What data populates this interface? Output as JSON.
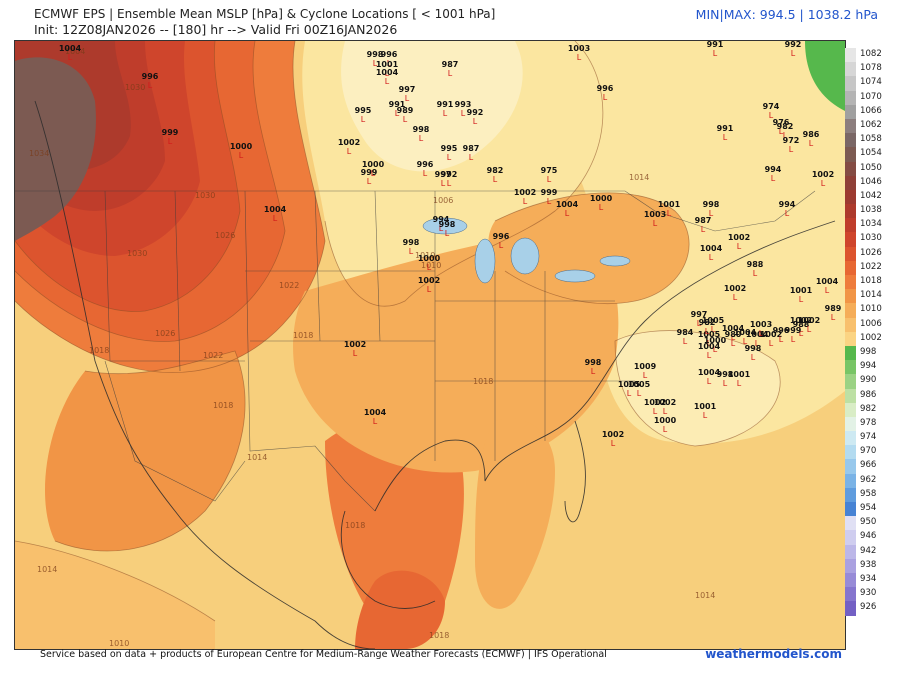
{
  "header": {
    "title": "ECMWF EPS | Ensemble Mean MSLP [hPa] & Cyclone Locations [ < 1001 hPa]",
    "init_line": "Init: 12Z08JAN2026 -- [180] hr --> Valid Fri 00Z16JAN2026",
    "minmax": "MIN|MAX: 994.5 | 1038.2 hPa"
  },
  "footer": {
    "attribution": "Service based on data + products of European Centre for Medium-Range Weather Forecasts (ECMWF) | IFS Operational",
    "brand": "weathermodels.com"
  },
  "colorbar": [
    {
      "label": "1082",
      "color": "#e6e6e6"
    },
    {
      "label": "1078",
      "color": "#d6d6d6"
    },
    {
      "label": "1074",
      "color": "#c6c6c6"
    },
    {
      "label": "1070",
      "color": "#b4b4b4"
    },
    {
      "label": "1066",
      "color": "#a0a0a0"
    },
    {
      "label": "1062",
      "color": "#8c7e7e"
    },
    {
      "label": "1058",
      "color": "#7a6766"
    },
    {
      "label": "1054",
      "color": "#7c5a52"
    },
    {
      "label": "1050",
      "color": "#844c44"
    },
    {
      "label": "1046",
      "color": "#8e4038"
    },
    {
      "label": "1042",
      "color": "#9c3a30"
    },
    {
      "label": "1038",
      "color": "#ad3a2c"
    },
    {
      "label": "1034",
      "color": "#bf3d2b"
    },
    {
      "label": "1030",
      "color": "#cf452c"
    },
    {
      "label": "1026",
      "color": "#dc542e"
    },
    {
      "label": "1022",
      "color": "#e76733"
    },
    {
      "label": "1018",
      "color": "#ee7c3c"
    },
    {
      "label": "1014",
      "color": "#f19546"
    },
    {
      "label": "1010",
      "color": "#f5ad59"
    },
    {
      "label": "1006",
      "color": "#f8c06d"
    },
    {
      "label": "1002",
      "color": "#fbd483"
    },
    {
      "label": "998",
      "color": "#56b84c"
    },
    {
      "label": "994",
      "color": "#78c566"
    },
    {
      "label": "990",
      "color": "#9bd284"
    },
    {
      "label": "986",
      "color": "#bde0a4"
    },
    {
      "label": "982",
      "color": "#d9edc6"
    },
    {
      "label": "978",
      "color": "#e3f2e6"
    },
    {
      "label": "974",
      "color": "#cde9f2"
    },
    {
      "label": "970",
      "color": "#b3dbf0"
    },
    {
      "label": "966",
      "color": "#97c8ec"
    },
    {
      "label": "962",
      "color": "#7ab3e6"
    },
    {
      "label": "958",
      "color": "#5f9cde"
    },
    {
      "label": "954",
      "color": "#4783d4"
    },
    {
      "label": "950",
      "color": "#e0e0f4"
    },
    {
      "label": "946",
      "color": "#cfcdef"
    },
    {
      "label": "942",
      "color": "#bcb7e8"
    },
    {
      "label": "938",
      "color": "#aaa1e0"
    },
    {
      "label": "934",
      "color": "#978bd7"
    },
    {
      "label": "930",
      "color": "#8575ce"
    },
    {
      "label": "926",
      "color": "#7360c4"
    }
  ],
  "isobar_labels": [
    "1004",
    "1030",
    "1034",
    "1030",
    "1026",
    "1030",
    "1026",
    "1022",
    "1018",
    "1022",
    "1018",
    "1018",
    "1014",
    "1014",
    "1010",
    "1010",
    "1018",
    "1018",
    "1014",
    "1018",
    "1014",
    "1006",
    "1010"
  ],
  "cyclones": [
    {
      "v": "1004"
    },
    {
      "v": "996"
    },
    {
      "v": "999"
    },
    {
      "v": "998"
    },
    {
      "v": "996"
    },
    {
      "v": "1001"
    },
    {
      "v": "1004"
    },
    {
      "v": "987"
    },
    {
      "v": "997"
    },
    {
      "v": "995"
    },
    {
      "v": "991"
    },
    {
      "v": "989"
    },
    {
      "v": "998"
    },
    {
      "v": "991"
    },
    {
      "v": "993"
    },
    {
      "v": "992"
    },
    {
      "v": "1002"
    },
    {
      "v": "1000"
    },
    {
      "v": "999"
    },
    {
      "v": "996"
    },
    {
      "v": "997"
    },
    {
      "v": "992"
    },
    {
      "v": "995"
    },
    {
      "v": "987"
    },
    {
      "v": "982"
    },
    {
      "v": "975"
    },
    {
      "v": "1002"
    },
    {
      "v": "999"
    },
    {
      "v": "994"
    },
    {
      "v": "998"
    },
    {
      "v": "998"
    },
    {
      "v": "996"
    },
    {
      "v": "1000"
    },
    {
      "v": "1002"
    },
    {
      "v": "1004"
    },
    {
      "v": "1000"
    },
    {
      "v": "1003"
    },
    {
      "v": "998"
    },
    {
      "v": "987"
    },
    {
      "v": "1002"
    },
    {
      "v": "1004"
    },
    {
      "v": "988"
    },
    {
      "v": "1002"
    },
    {
      "v": "1001"
    },
    {
      "v": "1004"
    },
    {
      "v": "989"
    },
    {
      "v": "1002"
    },
    {
      "v": "1005"
    },
    {
      "v": "1005"
    },
    {
      "v": "1000"
    },
    {
      "v": "1004"
    },
    {
      "v": "1004"
    },
    {
      "v": "988"
    },
    {
      "v": "997"
    },
    {
      "v": "982"
    },
    {
      "v": "984"
    },
    {
      "v": "1004"
    },
    {
      "v": "980"
    },
    {
      "v": "1004"
    },
    {
      "v": "1003"
    },
    {
      "v": "1002"
    },
    {
      "v": "996"
    },
    {
      "v": "999"
    },
    {
      "v": "1002"
    },
    {
      "v": "998"
    },
    {
      "v": "998"
    },
    {
      "v": "1009"
    },
    {
      "v": "1005"
    },
    {
      "v": "1002"
    },
    {
      "v": "1004"
    },
    {
      "v": "998"
    },
    {
      "v": "1001"
    },
    {
      "v": "1002"
    },
    {
      "v": "1005"
    },
    {
      "v": "1001"
    },
    {
      "v": "1000"
    },
    {
      "v": "1002"
    },
    {
      "v": "1004"
    },
    {
      "v": "1000"
    },
    {
      "v": "994"
    },
    {
      "v": "992"
    },
    {
      "v": "991"
    },
    {
      "v": "974"
    },
    {
      "v": "976"
    },
    {
      "v": "982"
    },
    {
      "v": "986"
    },
    {
      "v": "972"
    },
    {
      "v": "991"
    },
    {
      "v": "996"
    },
    {
      "v": "1003"
    },
    {
      "v": "1001"
    },
    {
      "v": "1002"
    },
    {
      "v": "994"
    },
    {
      "v": "1002"
    },
    {
      "v": "1004"
    }
  ]
}
